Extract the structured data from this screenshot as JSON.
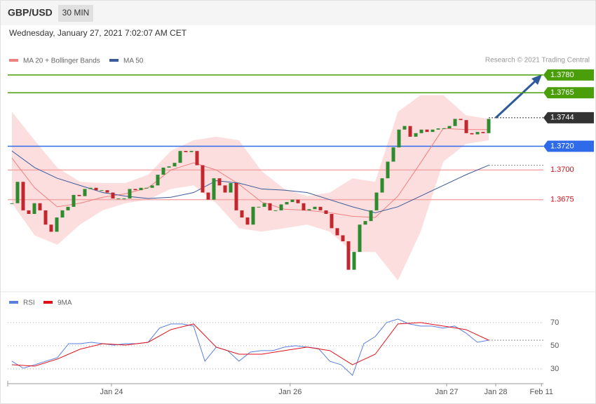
{
  "header": {
    "symbol": "GBP/USD",
    "timeframe": "30 MIN",
    "timestamp": "Wednesday, January 27, 2021 7:02:07 AM CET",
    "credit": "Research © 2021 Trading Central"
  },
  "chart_data": [
    {
      "type": "candlestick",
      "legend": [
        {
          "name": "MA 20 + Bollinger Bands",
          "color": "#f08080"
        },
        {
          "name": "MA 50",
          "color": "#3a5a9a"
        }
      ],
      "up_color": "#2e8b2e",
      "down_color": "#c0282d",
      "close": [
        1.3672,
        1.369,
        1.3666,
        1.3663,
        1.3672,
        1.3666,
        1.3654,
        1.3648,
        1.366,
        1.3666,
        1.3669,
        1.3679,
        1.3678,
        1.3684,
        1.3685,
        1.3683,
        1.3683,
        1.3681,
        1.3676,
        1.3676,
        1.3676,
        1.3684,
        1.3683,
        1.3685,
        1.3685,
        1.3687,
        1.3696,
        1.3702,
        1.3703,
        1.3706,
        1.3716,
        1.3715,
        1.3716,
        1.3704,
        1.3681,
        1.3675,
        1.3693,
        1.3687,
        1.3681,
        1.3689,
        1.3666,
        1.366,
        1.3654,
        1.3669,
        1.3669,
        1.3672,
        1.3666,
        1.3666,
        1.3671,
        1.3673,
        1.3675,
        1.3672,
        1.3666,
        1.3667,
        1.3669,
        1.3666,
        1.3663,
        1.3651,
        1.3645,
        1.364,
        1.3616,
        1.3631,
        1.3654,
        1.3657,
        1.3666,
        1.3681,
        1.3693,
        1.3707,
        1.3719,
        1.3734,
        1.3737,
        1.3728,
        1.3731,
        1.3734,
        1.3732,
        1.3734,
        1.3735,
        1.3735,
        1.3737,
        1.3743,
        1.3742,
        1.3731,
        1.373,
        1.3732,
        1.3731,
        1.3743
      ],
      "bollinger": {
        "color": "#fcdede",
        "upper": [
          1.3749,
          1.3725,
          1.3702,
          1.369,
          1.3689,
          1.3689,
          1.3696,
          1.3716,
          1.3725,
          1.3728,
          1.3725,
          1.3699,
          1.3684,
          1.3678,
          1.3681,
          1.3693,
          1.369,
          1.3749,
          1.3763,
          1.3763,
          1.3746,
          1.3743
        ],
        "lower": [
          1.3672,
          1.3645,
          1.3637,
          1.3654,
          1.3666,
          1.3672,
          1.3675,
          1.3684,
          1.3687,
          1.3672,
          1.3651,
          1.3648,
          1.3651,
          1.3654,
          1.3648,
          1.3631,
          1.3631,
          1.3607,
          1.3648,
          1.3707,
          1.3722,
          1.3725
        ]
      },
      "ma20": [
        1.371,
        1.3685,
        1.3669,
        1.3672,
        1.3677,
        1.368,
        1.3685,
        1.37,
        1.3706,
        1.37,
        1.3688,
        1.3673,
        1.3667,
        1.3666,
        1.3664,
        1.3661,
        1.366,
        1.3678,
        1.3706,
        1.3735,
        1.3734,
        1.3734
      ],
      "ma50": [
        1.3716,
        1.3702,
        1.3693,
        1.3687,
        1.3681,
        1.3678,
        1.3676,
        1.3677,
        1.3681,
        1.3691,
        1.3689,
        1.3684,
        1.3683,
        1.3681,
        1.3675,
        1.3669,
        1.3664,
        1.3669,
        1.3678,
        1.3687,
        1.3696,
        1.3704
      ],
      "levels": [
        {
          "value": 1.378,
          "label": "1.3780",
          "color": "#4a9e0a",
          "style": "tag",
          "line": "solid"
        },
        {
          "value": 1.3765,
          "label": "1.3765",
          "color": "#4a9e0a",
          "style": "tag",
          "line": "solid"
        },
        {
          "value": 1.3744,
          "label": "1.3744",
          "color": "#333333",
          "style": "tag",
          "line": "dotted"
        },
        {
          "value": 1.372,
          "label": "1.3720",
          "color": "#2f6be8",
          "style": "tag",
          "line": "solid"
        },
        {
          "value": 1.37,
          "label": "1.3700",
          "color": "#f4a6a6",
          "text_color": "#d0101a",
          "style": "text",
          "line": "solid"
        },
        {
          "value": 1.3675,
          "label": "1.3675",
          "color": "#f4a6a6",
          "text_color": "#d0101a",
          "style": "text",
          "line": "solid"
        }
      ],
      "xlim": [
        -0.75,
        94.75
      ],
      "ylim": [
        1.3601,
        1.3787
      ],
      "xticks": [
        {
          "value": 17.75,
          "label": "Jan 24"
        },
        {
          "value": 49.6,
          "label": "Jan 26"
        },
        {
          "value": 77.5,
          "label": "Jan 27"
        },
        {
          "value": 86.25,
          "label": "Jan 28"
        },
        {
          "value": 94.4,
          "label": "Feb 11"
        }
      ]
    },
    {
      "type": "line",
      "series": [
        {
          "name": "RSI",
          "color": "#5b7fe0",
          "values": [
            36.7,
            30.6,
            33.6,
            36.7,
            39.7,
            51.8,
            51.8,
            53.0,
            51.8,
            50.6,
            51.8,
            51.8,
            53.0,
            65.2,
            68.8,
            68.8,
            67.0,
            36.7,
            48.8,
            45.8,
            36.7,
            44.5,
            45.8,
            45.8,
            48.8,
            50.0,
            48.8,
            47.6,
            36.7,
            33.6,
            24.5,
            51.8,
            57.9,
            70.0,
            73.0,
            68.8,
            67.0,
            67.0,
            65.2,
            67.0,
            60.9,
            53.0,
            54.8
          ]
        },
        {
          "name": "9MA",
          "color": "#e0101a",
          "values": [
            33.6,
            32.4,
            38.5,
            47.0,
            51.8,
            50.6,
            53.0,
            63.9,
            68.8,
            48.8,
            42.7,
            42.7,
            45.8,
            48.8,
            45.8,
            33.6,
            42.7,
            68.8,
            70.0,
            67.0,
            63.9,
            54.8
          ]
        }
      ],
      "ylim": [
        18.5,
        79
      ],
      "yticks": [
        30,
        50,
        70
      ]
    }
  ]
}
